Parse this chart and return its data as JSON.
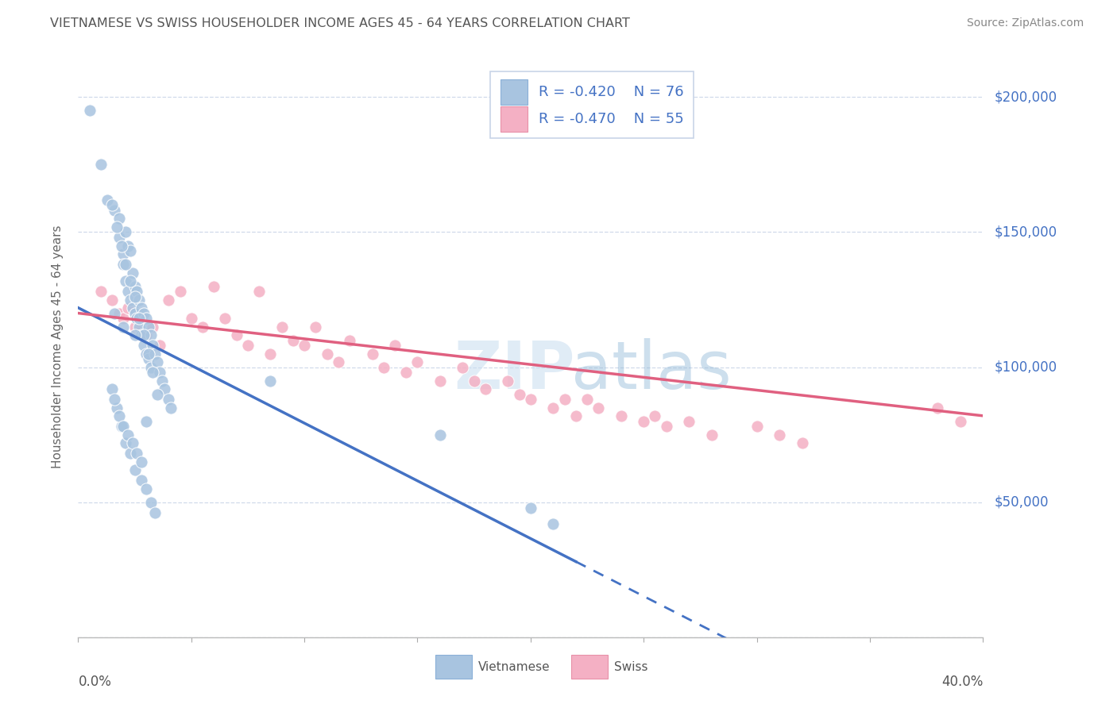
{
  "title": "VIETNAMESE VS SWISS HOUSEHOLDER INCOME AGES 45 - 64 YEARS CORRELATION CHART",
  "source": "Source: ZipAtlas.com",
  "ylabel": "Householder Income Ages 45 - 64 years",
  "xmin": 0.0,
  "xmax": 0.4,
  "ymin": 0,
  "ymax": 215000,
  "yticks": [
    0,
    50000,
    100000,
    150000,
    200000
  ],
  "ytick_labels": [
    "",
    "$50,000",
    "$100,000",
    "$150,000",
    "$200,000"
  ],
  "xticks": [
    0.0,
    0.05,
    0.1,
    0.15,
    0.2,
    0.25,
    0.3,
    0.35,
    0.4
  ],
  "legend_r_viet": "-0.420",
  "legend_n_viet": "76",
  "legend_r_swiss": "-0.470",
  "legend_n_swiss": "55",
  "viet_color": "#a8c4e0",
  "swiss_color": "#f4b0c4",
  "viet_line_color": "#4472c4",
  "swiss_line_color": "#e06080",
  "legend_text_color": "#4472c4",
  "title_color": "#555555",
  "source_color": "#888888",
  "background_color": "#ffffff",
  "grid_color": "#d0daea",
  "viet_x": [
    0.005,
    0.01,
    0.013,
    0.016,
    0.018,
    0.018,
    0.02,
    0.02,
    0.021,
    0.021,
    0.022,
    0.022,
    0.023,
    0.023,
    0.024,
    0.024,
    0.025,
    0.025,
    0.026,
    0.026,
    0.027,
    0.027,
    0.028,
    0.028,
    0.029,
    0.029,
    0.03,
    0.03,
    0.031,
    0.031,
    0.032,
    0.032,
    0.033,
    0.034,
    0.035,
    0.036,
    0.037,
    0.038,
    0.04,
    0.041,
    0.015,
    0.017,
    0.019,
    0.021,
    0.023,
    0.025,
    0.027,
    0.029,
    0.031,
    0.033,
    0.015,
    0.017,
    0.019,
    0.021,
    0.023,
    0.025,
    0.028,
    0.03,
    0.032,
    0.034,
    0.016,
    0.018,
    0.02,
    0.022,
    0.024,
    0.026,
    0.028,
    0.03,
    0.2,
    0.21,
    0.016,
    0.02,
    0.025,
    0.035,
    0.085,
    0.16
  ],
  "viet_y": [
    195000,
    175000,
    162000,
    158000,
    155000,
    148000,
    142000,
    138000,
    150000,
    132000,
    145000,
    128000,
    143000,
    125000,
    135000,
    122000,
    130000,
    120000,
    128000,
    118000,
    125000,
    115000,
    122000,
    112000,
    120000,
    108000,
    118000,
    105000,
    115000,
    103000,
    112000,
    100000,
    108000,
    105000,
    102000,
    98000,
    95000,
    92000,
    88000,
    85000,
    160000,
    152000,
    145000,
    138000,
    132000,
    126000,
    118000,
    112000,
    105000,
    98000,
    92000,
    85000,
    78000,
    72000,
    68000,
    62000,
    58000,
    55000,
    50000,
    46000,
    88000,
    82000,
    78000,
    75000,
    72000,
    68000,
    65000,
    80000,
    48000,
    42000,
    120000,
    115000,
    112000,
    90000,
    95000,
    75000
  ],
  "swiss_x": [
    0.01,
    0.015,
    0.018,
    0.02,
    0.022,
    0.025,
    0.028,
    0.03,
    0.033,
    0.036,
    0.04,
    0.045,
    0.05,
    0.055,
    0.06,
    0.065,
    0.07,
    0.075,
    0.08,
    0.085,
    0.09,
    0.095,
    0.1,
    0.105,
    0.11,
    0.115,
    0.12,
    0.13,
    0.135,
    0.14,
    0.145,
    0.15,
    0.16,
    0.17,
    0.175,
    0.18,
    0.19,
    0.195,
    0.2,
    0.21,
    0.215,
    0.22,
    0.225,
    0.23,
    0.24,
    0.25,
    0.255,
    0.26,
    0.27,
    0.28,
    0.3,
    0.31,
    0.32,
    0.38,
    0.39
  ],
  "swiss_y": [
    128000,
    125000,
    120000,
    118000,
    122000,
    115000,
    118000,
    112000,
    115000,
    108000,
    125000,
    128000,
    118000,
    115000,
    130000,
    118000,
    112000,
    108000,
    128000,
    105000,
    115000,
    110000,
    108000,
    115000,
    105000,
    102000,
    110000,
    105000,
    100000,
    108000,
    98000,
    102000,
    95000,
    100000,
    95000,
    92000,
    95000,
    90000,
    88000,
    85000,
    88000,
    82000,
    88000,
    85000,
    82000,
    80000,
    82000,
    78000,
    80000,
    75000,
    78000,
    75000,
    72000,
    85000,
    80000
  ]
}
